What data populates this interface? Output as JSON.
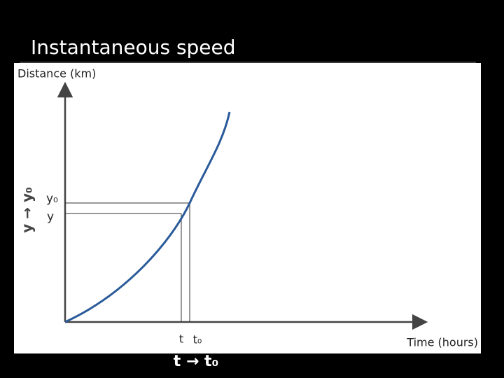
{
  "title": "Instantaneous speed",
  "diagram": {
    "y_axis_label": "Distance (km)",
    "x_axis_label": "Time (hours)",
    "y0_label": "y₀",
    "y_label": "y",
    "t_label": "t",
    "t0_label": "t₀",
    "x_limit_note": "t → t₀",
    "y_limit_note": "y → y₀"
  }
}
